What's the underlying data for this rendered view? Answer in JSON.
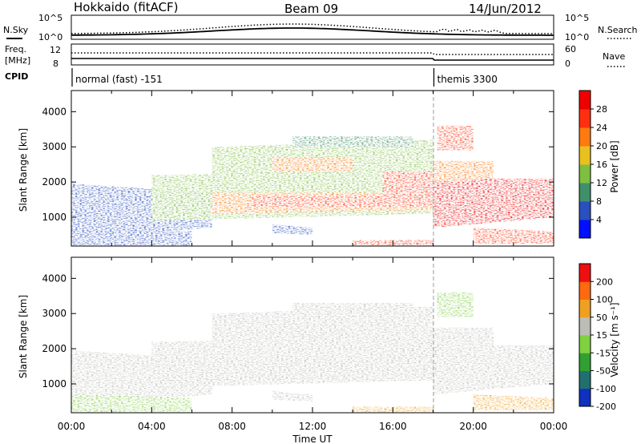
{
  "header": {
    "station": "Hokkaido (fitACF)",
    "beam": "Beam 09",
    "date": "14/Jun/2012"
  },
  "strip": {
    "nsky_label": "N.Sky",
    "nsearch_label": "N.Search",
    "freq_label_line1": "Freq.",
    "freq_label_line2": "[MHz]",
    "nave_label": "Nave",
    "cpid_label": "CPID",
    "noise_ticks_left": [
      "10^5",
      "10^0"
    ],
    "noise_ticks_right": [
      "10^5",
      "10^0"
    ],
    "freq_ticks": [
      "12",
      "8"
    ],
    "nave_ticks": [
      "60",
      "0"
    ],
    "cpid_segments": [
      {
        "start_hour": 0,
        "label": "normal (fast) -151"
      },
      {
        "start_hour": 18,
        "label": "themis 3300"
      }
    ]
  },
  "chart_data": [
    {
      "type": "heatmap",
      "panel": "power",
      "ylabel": "Slant Range [km]",
      "xlabel": "Time UT",
      "ylim": [
        180,
        4600
      ],
      "xlim_hours": [
        0,
        24
      ],
      "yticks": [
        "1000",
        "2000",
        "3000",
        "4000"
      ],
      "xticks": [
        "00:00",
        "04:00",
        "08:00",
        "12:00",
        "16:00",
        "20:00",
        "00:00"
      ],
      "colorbar": {
        "label": "Power [dB]",
        "ticks": [
          "4",
          "8",
          "12",
          "16",
          "20",
          "24",
          "28"
        ],
        "colors": [
          "#0010ff",
          "#2a4fbf",
          "#3f8f6a",
          "#7fbf40",
          "#e8c020",
          "#ff7a10",
          "#ff3010",
          "#ee0000"
        ]
      }
    },
    {
      "type": "heatmap",
      "panel": "velocity",
      "ylabel": "Slant Range [km]",
      "xlabel": "Time UT",
      "ylim": [
        180,
        4600
      ],
      "xlim_hours": [
        0,
        24
      ],
      "yticks": [
        "1000",
        "2000",
        "3000",
        "4000"
      ],
      "xticks": [
        "00:00",
        "04:00",
        "08:00",
        "12:00",
        "16:00",
        "20:00",
        "00:00"
      ],
      "colorbar": {
        "label": "Velocity [m s⁻¹]",
        "ticks": [
          "200",
          "100",
          "50",
          "15",
          "-15",
          "-50",
          "-100",
          "-200"
        ],
        "colors": [
          "#1030c0",
          "#207070",
          "#30a030",
          "#80d040",
          "#bdbdb8",
          "#f0a020",
          "#ff6a10",
          "#ee1010"
        ]
      }
    }
  ]
}
